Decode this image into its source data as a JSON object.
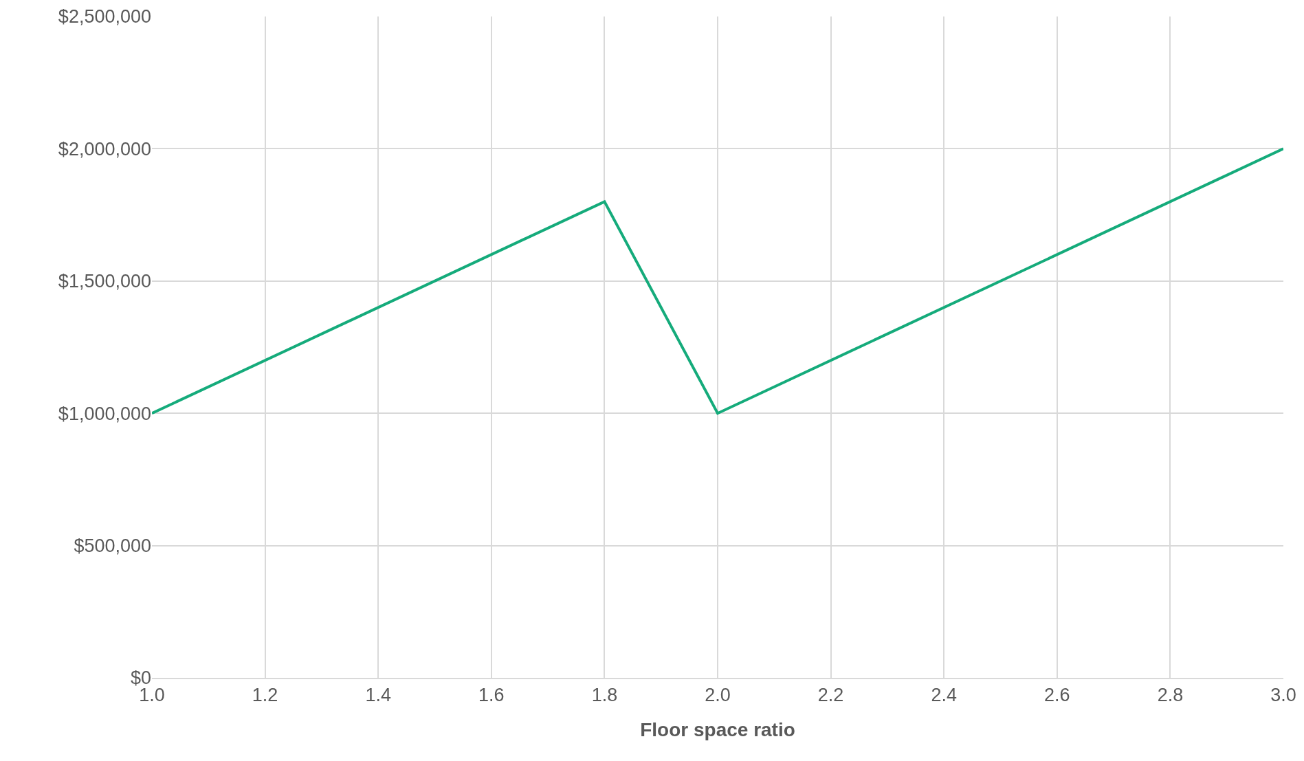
{
  "chart_data": {
    "type": "line",
    "xlabel": "Floor space ratio",
    "x": [
      1.0,
      1.8,
      2.0,
      3.0
    ],
    "series": [
      {
        "color": "#15ab7b",
        "values": [
          1000000,
          1800000,
          1000000,
          2000000
        ]
      }
    ],
    "xlim": [
      1.0,
      3.0
    ],
    "xticks": [
      {
        "value": 1.0,
        "label": "1.0"
      },
      {
        "value": 1.2,
        "label": "1.2"
      },
      {
        "value": 1.4,
        "label": "1.4"
      },
      {
        "value": 1.6,
        "label": "1.6"
      },
      {
        "value": 1.8,
        "label": "1.8"
      },
      {
        "value": 2.0,
        "label": "2.0"
      },
      {
        "value": 2.2,
        "label": "2.2"
      },
      {
        "value": 2.4,
        "label": "2.4"
      },
      {
        "value": 2.6,
        "label": "2.6"
      },
      {
        "value": 2.8,
        "label": "2.8"
      },
      {
        "value": 3.0,
        "label": "3.0"
      }
    ],
    "ylim": [
      0,
      2500000
    ],
    "yticks": [
      {
        "value": 0,
        "label": "$0"
      },
      {
        "value": 500000,
        "label": "$500,000"
      },
      {
        "value": 1000000,
        "label": "$1,000,000"
      },
      {
        "value": 1500000,
        "label": "$1,500,000"
      },
      {
        "value": 2000000,
        "label": "$2,000,000"
      },
      {
        "value": 2500000,
        "label": "$2,500,000"
      }
    ],
    "grid": true,
    "legend": false,
    "marker": "none",
    "line_style": "solid"
  }
}
